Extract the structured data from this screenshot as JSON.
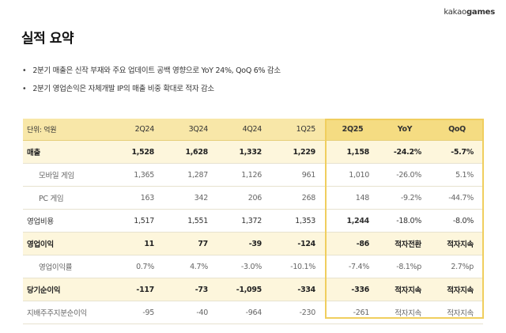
{
  "brand": {
    "kakao": "kakao",
    "games": "games"
  },
  "title": "실적 요약",
  "bullets": [
    "2분기 매출은 신작 부재와 주요 업데이트 공백 영향으로 YoY 24%, QoQ 6% 감소",
    "2분기 영업손익은 자체개발 IP의 매출 비중 확대로 적자 감소"
  ],
  "table": {
    "unit": "단위: 억원",
    "headers": [
      "2Q24",
      "3Q24",
      "4Q24",
      "1Q25",
      "2Q25",
      "YoY",
      "QoQ"
    ],
    "rows": [
      {
        "label": "매출",
        "values": [
          "1,528",
          "1,628",
          "1,332",
          "1,229",
          "1,158",
          "-24.2%",
          "-5.7%"
        ]
      },
      {
        "label": "모바일 게임",
        "values": [
          "1,365",
          "1,287",
          "1,126",
          "961",
          "1,010",
          "-26.0%",
          "5.1%"
        ]
      },
      {
        "label": "PC 게임",
        "values": [
          "163",
          "342",
          "206",
          "268",
          "148",
          "-9.2%",
          "-44.7%"
        ]
      },
      {
        "label": "영업비용",
        "values": [
          "1,517",
          "1,551",
          "1,372",
          "1,353",
          "1,244",
          "-18.0%",
          "-8.0%"
        ]
      },
      {
        "label": "영업이익",
        "values": [
          "11",
          "77",
          "-39",
          "-124",
          "-86",
          "적자전환",
          "적자지속"
        ]
      },
      {
        "label": "영업이익률",
        "values": [
          "0.7%",
          "4.7%",
          "-3.0%",
          "-10.1%",
          "-7.4%",
          "-8.1%p",
          "2.7%p"
        ]
      },
      {
        "label": "당기순이익",
        "values": [
          "-117",
          "-73",
          "-1,095",
          "-334",
          "-336",
          "적자지속",
          "적자지속"
        ]
      },
      {
        "label": "지배주주지분순이익",
        "values": [
          "-95",
          "-40",
          "-964",
          "-230",
          "-261",
          "적자지속",
          "적자지속"
        ]
      }
    ]
  }
}
